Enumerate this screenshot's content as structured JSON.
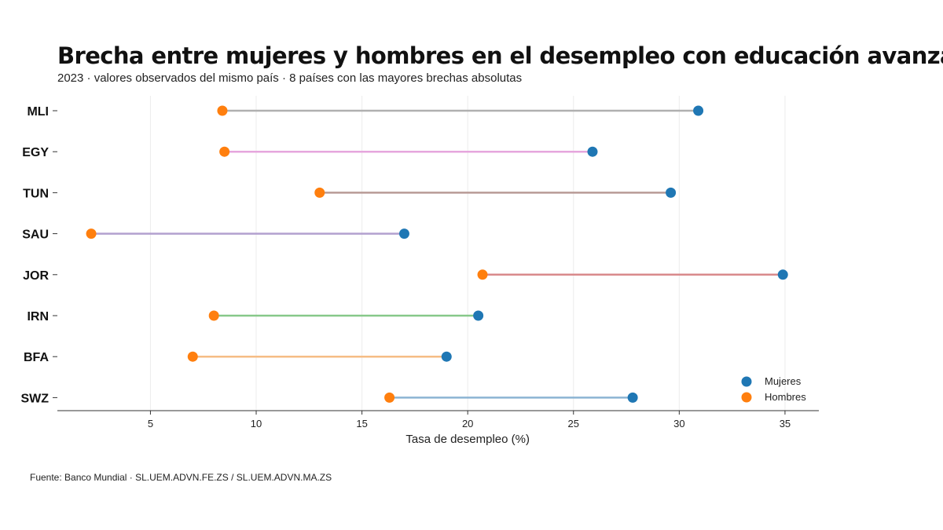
{
  "title": "Brecha entre mujeres y hombres en el desempleo con educación avanzada",
  "subtitle": "2023 · valores observados del mismo país · 8 países con las mayores brechas absolutas",
  "source": "Fuente: Banco Mundial · SL.UEM.ADVN.FE.ZS / SL.UEM.ADVN.MA.ZS",
  "chart_data": {
    "type": "dumbbell",
    "xlabel": "Tasa de desempleo (%)",
    "ylabel": "",
    "xlim": [
      0.6,
      36.6
    ],
    "xticks": [
      5,
      10,
      15,
      20,
      25,
      30,
      35
    ],
    "grid": "vertical",
    "legend_position": "bottom-right",
    "categories": [
      "MLI",
      "EGY",
      "TUN",
      "SAU",
      "JOR",
      "IRN",
      "BFA",
      "SWZ"
    ],
    "connector_colors": [
      "#b0b0b0",
      "#e6a6dd",
      "#b89b96",
      "#b3a0cf",
      "#d98a8c",
      "#87c889",
      "#f6bd85",
      "#8cb4d3"
    ],
    "series": [
      {
        "name": "Mujeres",
        "color": "#1f77b4",
        "values": [
          30.9,
          25.9,
          29.6,
          17.0,
          34.9,
          20.5,
          19.0,
          27.8
        ]
      },
      {
        "name": "Hombres",
        "color": "#ff7f0e",
        "values": [
          8.4,
          8.5,
          13.0,
          2.2,
          20.7,
          8.0,
          7.0,
          16.3
        ]
      }
    ]
  }
}
